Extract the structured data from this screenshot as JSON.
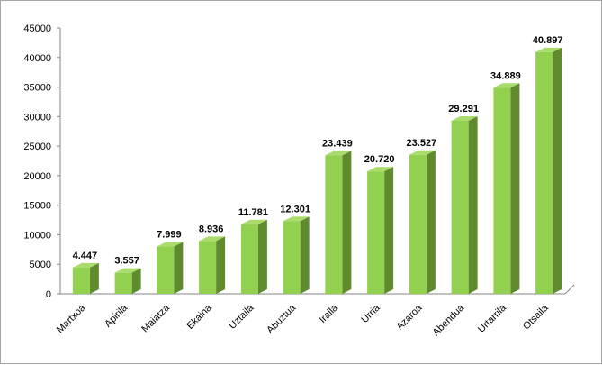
{
  "chart_data": {
    "type": "bar",
    "title": "",
    "xlabel": "",
    "ylabel": "",
    "categories": [
      "Martxoa",
      "Apirila",
      "Maiatza",
      "Ekaina",
      "Uztaila",
      "Abuztua",
      "Iraila",
      "Urria",
      "Azaroa",
      "Abendua",
      "Urtarrila",
      "Otsaila"
    ],
    "values": [
      4447,
      3557,
      7999,
      8936,
      11781,
      12301,
      23439,
      20720,
      23527,
      29291,
      34889,
      40897
    ],
    "value_labels": [
      "4.447",
      "3.557",
      "7.999",
      "8.936",
      "11.781",
      "12.301",
      "23.439",
      "20.720",
      "23.527",
      "29.291",
      "34.889",
      "40.897"
    ],
    "ylim": [
      0,
      45000
    ],
    "yticks": [
      "0",
      "5000",
      "10000",
      "15000",
      "20000",
      "25000",
      "30000",
      "35000",
      "40000",
      "45000"
    ],
    "grid": false,
    "legend": "none",
    "bar_style": "3d",
    "colors": {
      "bar_front": "#92d050",
      "bar_top": "#a9dc6c",
      "bar_side": "#5f8a2e",
      "axis": "#868686"
    }
  }
}
